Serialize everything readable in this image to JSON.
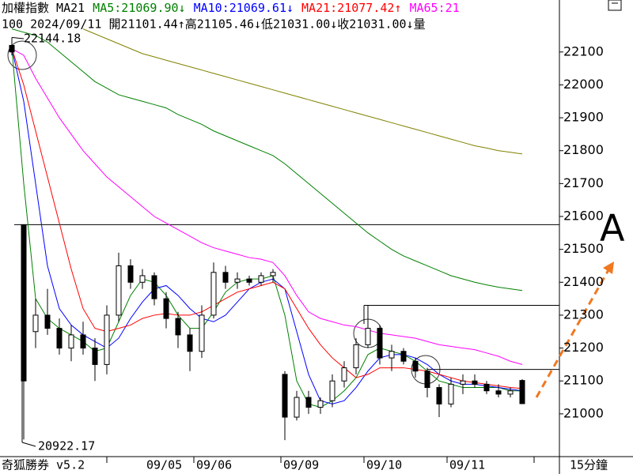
{
  "chart_data": {
    "type": "candlestick",
    "title": "加權指數",
    "subtitle": "MA21",
    "info": "100 2024/09/11 開21101.44↑高21105.46↓低21031.00↓收21031.00↓量",
    "footer": "奇狐勝券 v5.2",
    "period": "15分鐘",
    "annotation": "A",
    "days": [
      "09/05",
      "09/06",
      "09/09",
      "09/10",
      "09/11"
    ],
    "ylim": [
      20870,
      22258
    ],
    "yticks": [
      21000,
      21100,
      21200,
      21300,
      21400,
      21500,
      21600,
      21700,
      21800,
      21900,
      22000,
      22100
    ],
    "high_label": {
      "value": 22144.18,
      "label": "22144.18"
    },
    "low_label": {
      "value": 20922.17,
      "label": "20922.17"
    },
    "hlines": [
      21575,
      21330,
      21135
    ],
    "up_color": "#ffffff",
    "down_color": "#000000",
    "open": [
      22120,
      21575,
      21250,
      21300,
      21260,
      21200,
      21240,
      21200,
      21150,
      21300,
      21450,
      21400,
      21420,
      21350,
      21290,
      21240,
      21190,
      21300,
      21430,
      21400,
      21410,
      21400,
      21420,
      21120,
      20990,
      21050,
      21020,
      21040,
      21100,
      21140,
      21210,
      21260,
      21170,
      21190,
      21160,
      21130,
      21080,
      21030,
      21090,
      21100,
      21090,
      21070,
      21060,
      21101.44
    ],
    "high": [
      22144.18,
      21575,
      21350,
      21380,
      21290,
      21270,
      21280,
      21230,
      21330,
      21490,
      21470,
      21440,
      21430,
      21370,
      21310,
      21260,
      21330,
      21460,
      21450,
      21430,
      21420,
      21430,
      21440,
      21130,
      21070,
      21070,
      21050,
      21120,
      21160,
      21230,
      21330,
      21270,
      21210,
      21200,
      21170,
      21140,
      21090,
      21110,
      21120,
      21120,
      21100,
      21090,
      21080,
      21105.46
    ],
    "low": [
      22090,
      20922.17,
      21200,
      21240,
      21180,
      21160,
      21180,
      21100,
      21120,
      21280,
      21380,
      21380,
      21330,
      21260,
      21200,
      21130,
      21170,
      21290,
      21380,
      21380,
      21390,
      21390,
      21400,
      20920,
      20980,
      21000,
      21000,
      21020,
      21080,
      21120,
      21200,
      21150,
      21130,
      21150,
      21110,
      21050,
      20990,
      21020,
      21060,
      21080,
      21060,
      21050,
      21050,
      21031
    ],
    "close": [
      22100,
      21100,
      21300,
      21260,
      21200,
      21240,
      21200,
      21150,
      21300,
      21450,
      21400,
      21420,
      21350,
      21290,
      21240,
      21190,
      21300,
      21430,
      21400,
      21410,
      21400,
      21420,
      21430,
      20990,
      21050,
      21020,
      21040,
      21100,
      21140,
      21210,
      21260,
      21170,
      21190,
      21160,
      21130,
      21080,
      21030,
      21090,
      21100,
      21090,
      21070,
      21060,
      21070,
      21031
    ],
    "series": [
      {
        "name": "MA5",
        "color": "#008000",
        "legend_text": ":21069.90↓",
        "values": [
          22110,
          21700,
          21350,
          21290,
          21260,
          21240,
          21220,
          21190,
          21200,
          21280,
          21360,
          21410,
          21400,
          21360,
          21300,
          21260,
          21260,
          21310,
          21370,
          21400,
          21410,
          21410,
          21420,
          21300,
          21100,
          21030,
          21020,
          21040,
          21070,
          21110,
          21180,
          21200,
          21190,
          21180,
          21160,
          21130,
          21100,
          21090,
          21080,
          21080,
          21080,
          21080,
          21070,
          21070
        ]
      },
      {
        "name": "MA10",
        "color": "#0000ff",
        "legend_text": ":21069.61↓",
        "values": [
          22110,
          21950,
          21700,
          21450,
          21320,
          21270,
          21240,
          21220,
          21200,
          21230,
          21290,
          21340,
          21380,
          21390,
          21360,
          21320,
          21290,
          21280,
          21300,
          21340,
          21380,
          21400,
          21410,
          21380,
          21250,
          21120,
          21040,
          21030,
          21040,
          21080,
          21130,
          21170,
          21180,
          21180,
          21170,
          21150,
          21120,
          21100,
          21090,
          21090,
          21085,
          21080,
          21075,
          21070
        ]
      },
      {
        "name": "MA21",
        "color": "#ff0000",
        "legend_text": ":21077.42↑",
        "values": [
          22110,
          22000,
          21860,
          21720,
          21580,
          21440,
          21320,
          21260,
          21250,
          21260,
          21270,
          21290,
          21300,
          21305,
          21300,
          21300,
          21310,
          21330,
          21350,
          21370,
          21380,
          21390,
          21400,
          21380,
          21320,
          21260,
          21210,
          21170,
          21140,
          21110,
          21120,
          21140,
          21140,
          21140,
          21135,
          21130,
          21120,
          21110,
          21100,
          21095,
          21090,
          21085,
          21080,
          21077
        ]
      },
      {
        "name": "MA65",
        "color": "#ff00ff",
        "legend_text": ":21",
        "values": [
          22110,
          22090,
          22020,
          21960,
          21900,
          21850,
          21800,
          21760,
          21720,
          21690,
          21660,
          21630,
          21600,
          21580,
          21560,
          21540,
          21520,
          21505,
          21495,
          21485,
          21475,
          21470,
          21460,
          21420,
          21360,
          21310,
          21290,
          21280,
          21270,
          21265,
          21255,
          21245,
          21240,
          21235,
          21230,
          21220,
          21210,
          21205,
          21200,
          21195,
          21185,
          21175,
          21160,
          21150
        ]
      },
      {
        "color": "#008000",
        "values": [
          22170,
          22160,
          22150,
          22130,
          22100,
          22070,
          22040,
          22010,
          21990,
          21970,
          21960,
          21950,
          21940,
          21930,
          21910,
          21895,
          21880,
          21860,
          21845,
          21830,
          21815,
          21800,
          21785,
          21760,
          21730,
          21700,
          21670,
          21640,
          21610,
          21580,
          21550,
          21525,
          21500,
          21480,
          21465,
          21450,
          21435,
          21420,
          21410,
          21400,
          21392,
          21385,
          21380,
          21375
        ]
      },
      {
        "color": "#808000",
        "values": [
          null,
          null,
          null,
          null,
          null,
          null,
          22170,
          22155,
          22140,
          22125,
          22110,
          22095,
          22085,
          22075,
          22065,
          22055,
          22045,
          22035,
          22025,
          22015,
          22005,
          21995,
          21985,
          21975,
          21965,
          21955,
          21945,
          21935,
          21925,
          21915,
          21905,
          21895,
          21885,
          21875,
          21865,
          21855,
          21845,
          21835,
          21825,
          21815,
          21808,
          21800,
          21795,
          21790
        ]
      }
    ]
  }
}
